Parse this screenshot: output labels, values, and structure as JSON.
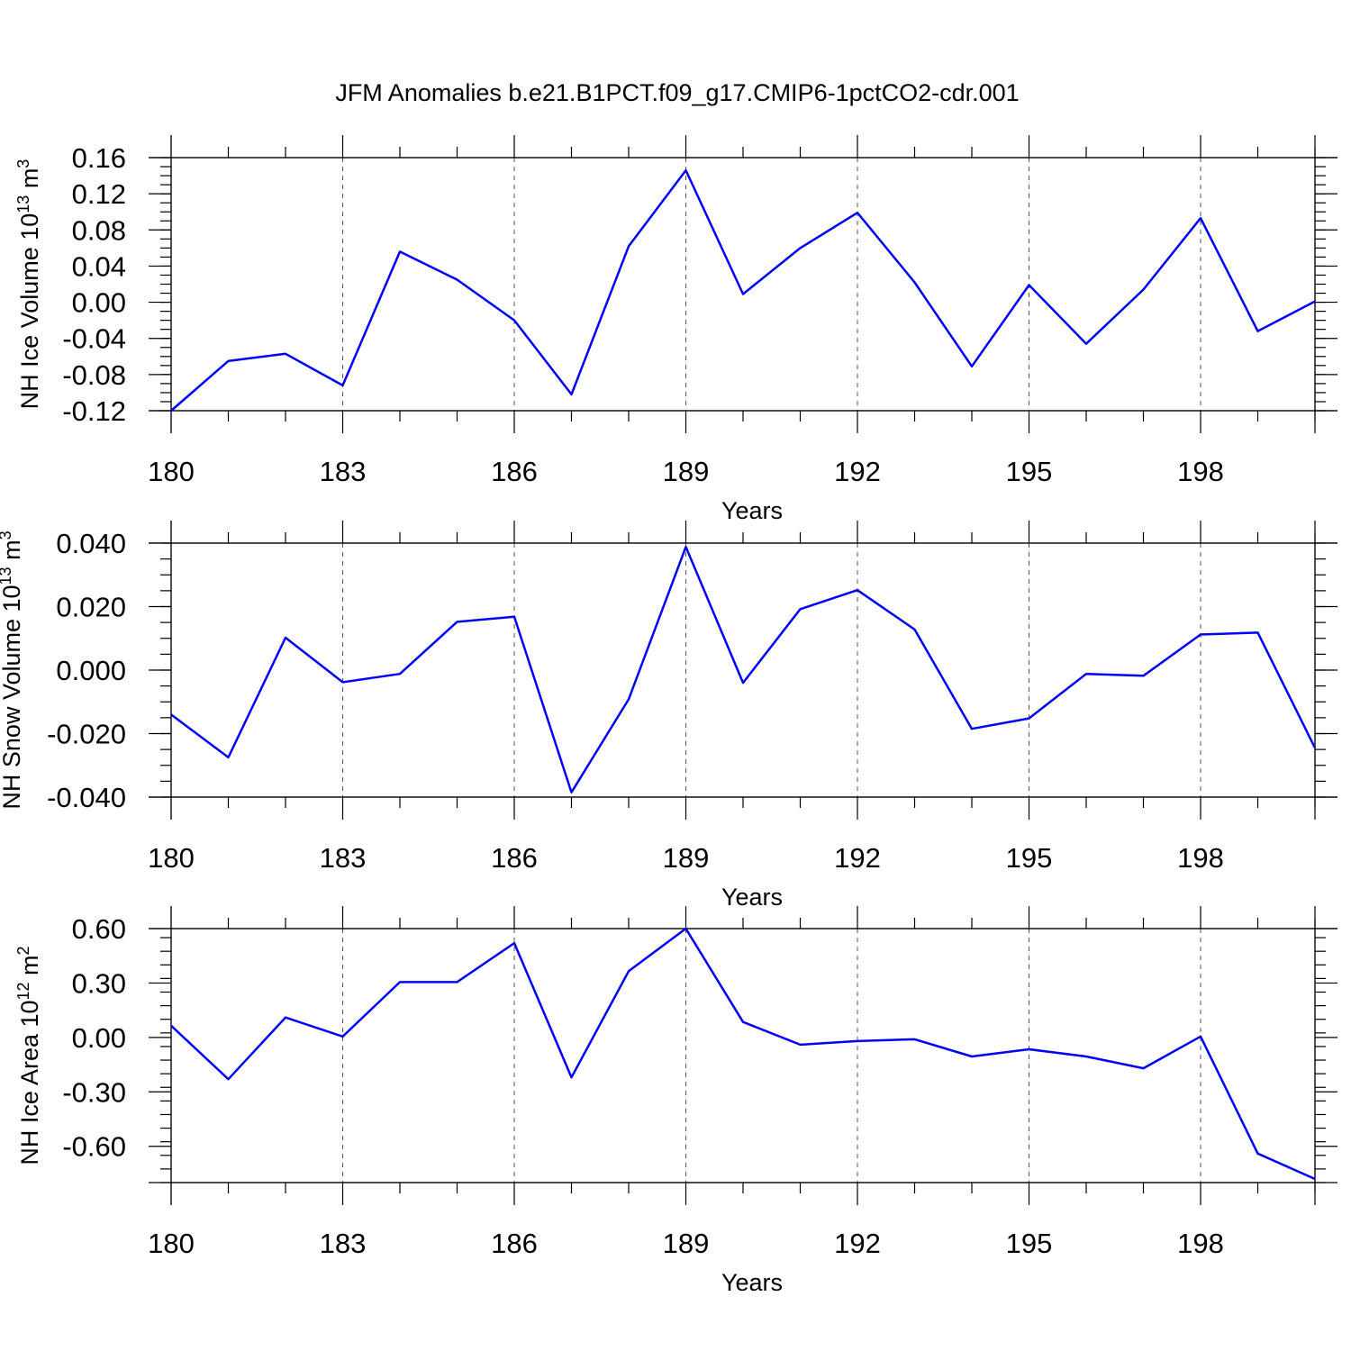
{
  "title": "JFM Anomalies b.e21.B1PCT.f09_g17.CMIP6-1pctCO2-cdr.001",
  "chart_data": [
    {
      "type": "line",
      "ylabel": "NH Ice Volume 10",
      "ylabel_sup": "13",
      "ylabel_unit": "m",
      "ylabel_unit_sup": "3",
      "xlabel": "Years",
      "xlim": [
        180,
        200
      ],
      "ylim": [
        -0.12,
        0.16
      ],
      "yticks": [
        -0.12,
        -0.08,
        -0.04,
        0.0,
        0.04,
        0.08,
        0.12,
        0.16
      ],
      "ytick_labels": [
        "-0.12",
        "-0.08",
        "-0.04",
        "0.00",
        "0.04",
        "0.08",
        "0.12",
        "0.16"
      ],
      "yminor_step": 0.01,
      "xticks": [
        180,
        183,
        186,
        189,
        192,
        195,
        198
      ],
      "xtick_labels": [
        "180",
        "183",
        "186",
        "189",
        "192",
        "195",
        "198"
      ],
      "xminor": [
        180,
        181,
        182,
        183,
        184,
        185,
        186,
        187,
        188,
        189,
        190,
        191,
        192,
        193,
        194,
        195,
        196,
        197,
        198,
        199,
        200
      ],
      "grid": "vertical dashed at major x ticks",
      "color": "#0000ff",
      "x": [
        180,
        181,
        182,
        183,
        184,
        185,
        186,
        187,
        188,
        189,
        190,
        191,
        192,
        193,
        194,
        195,
        196,
        197,
        198,
        199,
        200
      ],
      "values": [
        -0.12,
        -0.065,
        -0.057,
        -0.092,
        0.056,
        0.025,
        -0.02,
        -0.102,
        0.062,
        0.146,
        0.009,
        0.06,
        0.099,
        0.022,
        -0.071,
        0.019,
        -0.046,
        0.014,
        0.093,
        -0.032,
        0.001
      ]
    },
    {
      "type": "line",
      "ylabel": "NH Snow Volume 10",
      "ylabel_sup": "13",
      "ylabel_unit": "m",
      "ylabel_unit_sup": "3",
      "xlabel": "Years",
      "xlim": [
        180,
        200
      ],
      "ylim": [
        -0.04,
        0.04
      ],
      "yticks": [
        -0.04,
        -0.02,
        0.0,
        0.02,
        0.04
      ],
      "ytick_labels": [
        "-0.040",
        "-0.020",
        "0.000",
        "0.020",
        "0.040"
      ],
      "yminor_step": 0.005,
      "xticks": [
        180,
        183,
        186,
        189,
        192,
        195,
        198
      ],
      "xtick_labels": [
        "180",
        "183",
        "186",
        "189",
        "192",
        "195",
        "198"
      ],
      "xminor": [
        180,
        181,
        182,
        183,
        184,
        185,
        186,
        187,
        188,
        189,
        190,
        191,
        192,
        193,
        194,
        195,
        196,
        197,
        198,
        199,
        200
      ],
      "grid": "vertical dashed at major x ticks",
      "color": "#0000ff",
      "x": [
        180,
        181,
        182,
        183,
        184,
        185,
        186,
        187,
        188,
        189,
        190,
        191,
        192,
        193,
        194,
        195,
        196,
        197,
        198,
        199,
        200
      ],
      "values": [
        -0.014,
        -0.0275,
        0.0102,
        -0.0038,
        -0.0012,
        0.0152,
        0.0168,
        -0.0385,
        -0.0092,
        0.0388,
        -0.004,
        0.0192,
        0.0252,
        0.0128,
        -0.0185,
        -0.0152,
        -0.0012,
        -0.0018,
        0.0112,
        0.0118,
        -0.0245
      ]
    },
    {
      "type": "line",
      "ylabel": "NH Ice Area 10",
      "ylabel_sup": "12",
      "ylabel_unit": "m",
      "ylabel_unit_sup": "2",
      "xlabel": "Years",
      "xlim": [
        180,
        200
      ],
      "ylim": [
        -0.8,
        0.6
      ],
      "yticks": [
        -0.6,
        -0.3,
        0.0,
        0.3,
        0.6
      ],
      "ytick_labels": [
        "-0.60",
        "-0.30",
        "0.00",
        "0.30",
        "0.60"
      ],
      "yminor_step": 0.075,
      "xticks": [
        180,
        183,
        186,
        189,
        192,
        195,
        198
      ],
      "xtick_labels": [
        "180",
        "183",
        "186",
        "189",
        "192",
        "195",
        "198"
      ],
      "xminor": [
        180,
        181,
        182,
        183,
        184,
        185,
        186,
        187,
        188,
        189,
        190,
        191,
        192,
        193,
        194,
        195,
        196,
        197,
        198,
        199,
        200
      ],
      "grid": "vertical dashed at major x ticks",
      "color": "#0000ff",
      "x": [
        180,
        181,
        182,
        183,
        184,
        185,
        186,
        187,
        188,
        189,
        190,
        191,
        192,
        193,
        194,
        195,
        196,
        197,
        198,
        199,
        200
      ],
      "values": [
        0.065,
        -0.23,
        0.11,
        0.005,
        0.305,
        0.305,
        0.52,
        -0.22,
        0.365,
        0.6,
        0.085,
        -0.04,
        -0.02,
        -0.01,
        -0.105,
        -0.065,
        -0.105,
        -0.17,
        0.005,
        -0.64,
        -0.78
      ]
    }
  ]
}
